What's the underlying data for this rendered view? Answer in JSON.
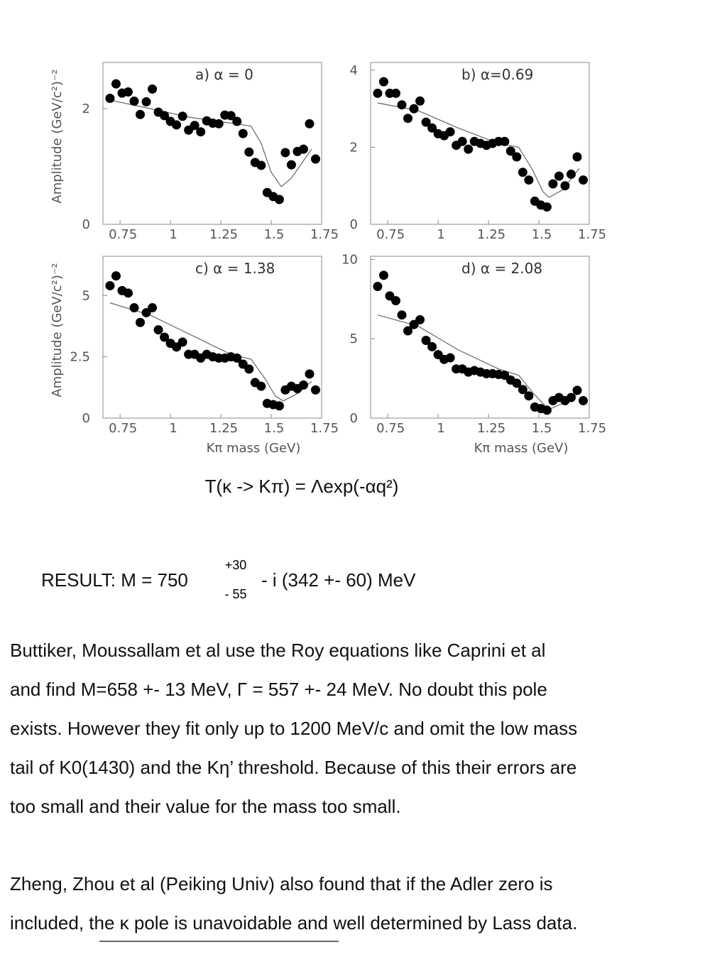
{
  "chart_data": [
    {
      "type": "scatter",
      "title": "a) α = 0",
      "ylabel": "Amplitude  (GeV/c²)⁻²",
      "x": [
        0.7,
        0.73,
        0.76,
        0.79,
        0.82,
        0.85,
        0.88,
        0.91,
        0.94,
        0.97,
        1.0,
        1.03,
        1.06,
        1.09,
        1.12,
        1.15,
        1.18,
        1.21,
        1.24,
        1.27,
        1.3,
        1.33,
        1.36,
        1.39,
        1.42,
        1.45,
        1.48,
        1.51,
        1.54,
        1.57,
        1.6,
        1.63,
        1.66,
        1.69,
        1.72
      ],
      "values": [
        2.18,
        2.43,
        2.27,
        2.29,
        2.13,
        1.9,
        2.12,
        2.34,
        1.94,
        1.88,
        1.78,
        1.72,
        1.87,
        1.63,
        1.71,
        1.6,
        1.79,
        1.75,
        1.74,
        1.89,
        1.88,
        1.78,
        1.57,
        1.25,
        1.07,
        1.02,
        0.55,
        0.48,
        0.43,
        1.24,
        1.03,
        1.26,
        1.3,
        1.74,
        1.13
      ],
      "curve": {
        "x": [
          0.7,
          0.9,
          1.1,
          1.3,
          1.4,
          1.45,
          1.5,
          1.55,
          1.6,
          1.7
        ],
        "values": [
          2.15,
          2.0,
          1.85,
          1.75,
          1.7,
          1.4,
          0.9,
          0.65,
          0.8,
          1.3
        ]
      },
      "xlim": [
        0.665,
        1.75
      ],
      "xticks": [
        0.75,
        1,
        1.25,
        1.5,
        1.75
      ],
      "ylim": [
        0,
        2.8
      ],
      "yticks": [
        0,
        2
      ]
    },
    {
      "type": "scatter",
      "title": "b) α=0.69",
      "x": [
        0.7,
        0.73,
        0.76,
        0.79,
        0.82,
        0.85,
        0.88,
        0.91,
        0.94,
        0.97,
        1.0,
        1.03,
        1.06,
        1.09,
        1.12,
        1.15,
        1.18,
        1.21,
        1.24,
        1.27,
        1.3,
        1.33,
        1.36,
        1.39,
        1.42,
        1.45,
        1.48,
        1.51,
        1.54,
        1.57,
        1.6,
        1.63,
        1.66,
        1.69,
        1.72
      ],
      "values": [
        3.4,
        3.7,
        3.4,
        3.4,
        3.1,
        2.75,
        3.0,
        3.2,
        2.65,
        2.5,
        2.35,
        2.3,
        2.4,
        2.05,
        2.15,
        1.95,
        2.15,
        2.1,
        2.05,
        2.1,
        2.15,
        2.15,
        1.9,
        1.75,
        1.35,
        1.15,
        0.6,
        0.5,
        0.45,
        1.05,
        1.25,
        1.0,
        1.3,
        1.75,
        1.15
      ],
      "curve": {
        "x": [
          0.7,
          0.9,
          1.1,
          1.3,
          1.4,
          1.47,
          1.52,
          1.55,
          1.62,
          1.7
        ],
        "values": [
          3.15,
          2.95,
          2.5,
          2.1,
          2.0,
          1.4,
          0.85,
          0.7,
          0.9,
          1.45
        ]
      },
      "xlim": [
        0.665,
        1.75
      ],
      "xticks": [
        0.75,
        1,
        1.25,
        1.5,
        1.75
      ],
      "ylim": [
        0,
        4.2
      ],
      "yticks": [
        0,
        2,
        4
      ]
    },
    {
      "type": "scatter",
      "title": "c) α = 1.38",
      "ylabel": "Amplitude (GeV/c²)⁻²",
      "xlabel": "Kπ mass (GeV)",
      "x": [
        0.7,
        0.73,
        0.76,
        0.79,
        0.82,
        0.85,
        0.88,
        0.91,
        0.94,
        0.97,
        1.0,
        1.03,
        1.06,
        1.09,
        1.12,
        1.15,
        1.18,
        1.21,
        1.24,
        1.27,
        1.3,
        1.33,
        1.36,
        1.39,
        1.42,
        1.45,
        1.48,
        1.51,
        1.54,
        1.57,
        1.6,
        1.63,
        1.66,
        1.69,
        1.72
      ],
      "values": [
        5.4,
        5.8,
        5.2,
        5.1,
        4.5,
        3.9,
        4.3,
        4.5,
        3.6,
        3.3,
        3.05,
        2.9,
        3.1,
        2.6,
        2.6,
        2.45,
        2.6,
        2.5,
        2.45,
        2.45,
        2.5,
        2.45,
        2.2,
        2.0,
        1.45,
        1.3,
        0.6,
        0.55,
        0.5,
        1.15,
        1.3,
        1.2,
        1.35,
        1.8,
        1.15
      ],
      "curve": {
        "x": [
          0.7,
          0.9,
          1.1,
          1.3,
          1.4,
          1.47,
          1.52,
          1.56,
          1.63,
          1.7
        ],
        "values": [
          4.7,
          4.2,
          3.4,
          2.6,
          2.4,
          1.6,
          0.9,
          0.7,
          1.0,
          1.5
        ]
      },
      "xlim": [
        0.665,
        1.75
      ],
      "xticks": [
        0.75,
        1,
        1.25,
        1.5,
        1.75
      ],
      "ylim": [
        0,
        6.6
      ],
      "yticks": [
        0,
        2.5,
        5
      ]
    },
    {
      "type": "scatter",
      "title": "d) α = 2.08",
      "xlabel": "Kπ mass (GeV)",
      "x": [
        0.7,
        0.73,
        0.76,
        0.79,
        0.82,
        0.85,
        0.88,
        0.91,
        0.94,
        0.97,
        1.0,
        1.03,
        1.06,
        1.09,
        1.12,
        1.15,
        1.18,
        1.21,
        1.24,
        1.27,
        1.3,
        1.33,
        1.36,
        1.39,
        1.42,
        1.45,
        1.48,
        1.51,
        1.54,
        1.57,
        1.6,
        1.63,
        1.66,
        1.69,
        1.72
      ],
      "values": [
        8.3,
        9.0,
        7.7,
        7.4,
        6.5,
        5.5,
        5.9,
        6.2,
        4.9,
        4.5,
        4.0,
        3.7,
        3.8,
        3.1,
        3.1,
        2.9,
        3.0,
        2.9,
        2.8,
        2.8,
        2.75,
        2.7,
        2.4,
        2.2,
        1.8,
        1.4,
        0.7,
        0.6,
        0.5,
        1.1,
        1.3,
        1.1,
        1.3,
        1.75,
        1.1
      ],
      "curve": {
        "x": [
          0.7,
          0.9,
          1.1,
          1.3,
          1.4,
          1.47,
          1.53,
          1.56,
          1.63,
          1.7
        ],
        "values": [
          6.5,
          5.8,
          4.3,
          3.1,
          2.7,
          1.6,
          0.8,
          0.6,
          1.0,
          1.6
        ]
      },
      "xlim": [
        0.665,
        1.75
      ],
      "xticks": [
        0.75,
        1,
        1.25,
        1.5,
        1.75
      ],
      "ylim": [
        0,
        10.2
      ],
      "yticks": [
        0,
        5,
        10
      ]
    }
  ],
  "formula": "T(κ -> Kπ) = Λexp(-αq²)",
  "result": {
    "lead": "RESULT: M = 750",
    "upper": "+30",
    "lower": "- 55",
    "tail": "- i (342 +- 60) MeV"
  },
  "paragraphs": [
    [
      "Buttiker, Moussallam et al use the Roy equations like Caprini et al",
      "and find M=658 +- 13 MeV, Γ = 557 +- 24 MeV. No doubt this pole",
      "exists. However they fit only up to 1200 MeV/c and omit the low mass",
      "tail of K0(1430) and the Kη’ threshold. Because of this their errors are",
      "too small and their value for the mass too small."
    ],
    [
      "Zheng, Zhou et al (Peiking Univ) also found that if the Adler zero is",
      "included, the κ pole is unavoidable and well determined by Lass data."
    ]
  ]
}
